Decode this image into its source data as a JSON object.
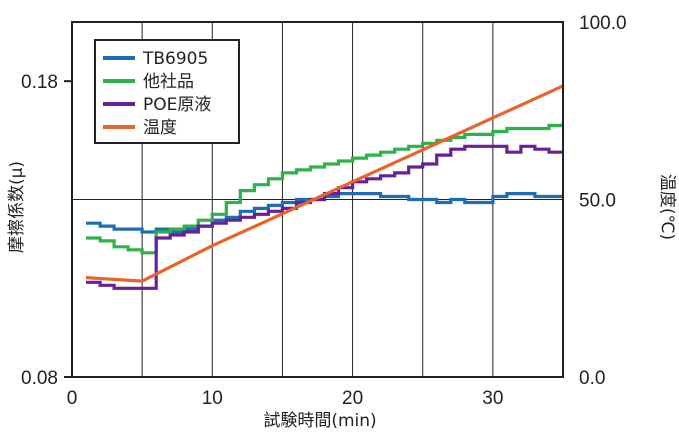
{
  "chart_data": {
    "type": "line",
    "xlabel": "試験時間(min)",
    "ylabel": "摩擦係数(μ)",
    "y2label": "温度(℃)",
    "xlim": [
      0,
      35
    ],
    "ylim": [
      0.08,
      0.2
    ],
    "y2lim": [
      0,
      100
    ],
    "x_ticks": [
      "0",
      "10",
      "20",
      "30"
    ],
    "y_ticks": [
      "0.08",
      "0.18"
    ],
    "y2_ticks": [
      "0.0",
      "50.0",
      "100.0"
    ],
    "grid": true,
    "legend_position": "top-left",
    "series": [
      {
        "name": "TB6905",
        "axis": "left",
        "color": "#1e6db3",
        "x": [
          1,
          2,
          3,
          4,
          5,
          6,
          7,
          8,
          9,
          10,
          11,
          12,
          13,
          14,
          15,
          16,
          17,
          18,
          19,
          20,
          21,
          22,
          23,
          24,
          25,
          26,
          27,
          28,
          29,
          30,
          31,
          32,
          33,
          34,
          35
        ],
        "y": [
          0.132,
          0.131,
          0.13,
          0.13,
          0.129,
          0.13,
          0.129,
          0.13,
          0.131,
          0.133,
          0.134,
          0.136,
          0.137,
          0.138,
          0.139,
          0.14,
          0.14,
          0.141,
          0.142,
          0.142,
          0.142,
          0.141,
          0.141,
          0.14,
          0.14,
          0.139,
          0.14,
          0.139,
          0.139,
          0.141,
          0.142,
          0.142,
          0.141,
          0.141,
          0.141
        ]
      },
      {
        "name": "他社品",
        "axis": "left",
        "color": "#2bb34a",
        "x": [
          1,
          2,
          3,
          4,
          5,
          6,
          7,
          8,
          9,
          10,
          11,
          12,
          13,
          14,
          15,
          16,
          17,
          18,
          19,
          20,
          21,
          22,
          23,
          24,
          25,
          26,
          27,
          28,
          29,
          30,
          31,
          32,
          33,
          34,
          35
        ],
        "y": [
          0.127,
          0.126,
          0.124,
          0.123,
          0.122,
          0.129,
          0.13,
          0.131,
          0.133,
          0.135,
          0.139,
          0.143,
          0.145,
          0.147,
          0.149,
          0.15,
          0.151,
          0.152,
          0.153,
          0.154,
          0.155,
          0.156,
          0.157,
          0.158,
          0.159,
          0.16,
          0.161,
          0.162,
          0.162,
          0.163,
          0.164,
          0.164,
          0.164,
          0.165,
          0.166
        ]
      },
      {
        "name": "POE原液",
        "axis": "left",
        "color": "#6a1f9a",
        "x": [
          1,
          2,
          3,
          4,
          5,
          6,
          7,
          8,
          9,
          10,
          11,
          12,
          13,
          14,
          15,
          16,
          17,
          18,
          19,
          20,
          21,
          22,
          23,
          24,
          25,
          26,
          27,
          28,
          29,
          30,
          31,
          32,
          33,
          34,
          35
        ],
        "y": [
          0.112,
          0.111,
          0.11,
          0.11,
          0.11,
          0.127,
          0.128,
          0.129,
          0.131,
          0.132,
          0.133,
          0.134,
          0.135,
          0.136,
          0.137,
          0.139,
          0.14,
          0.142,
          0.144,
          0.146,
          0.147,
          0.148,
          0.149,
          0.151,
          0.152,
          0.155,
          0.157,
          0.158,
          0.158,
          0.158,
          0.156,
          0.158,
          0.157,
          0.156,
          0.156
        ]
      },
      {
        "name": "温度",
        "axis": "right",
        "color": "#e8642a",
        "x": [
          1,
          5,
          6,
          10,
          35
        ],
        "y": [
          28,
          27,
          29,
          37,
          82
        ]
      }
    ]
  }
}
